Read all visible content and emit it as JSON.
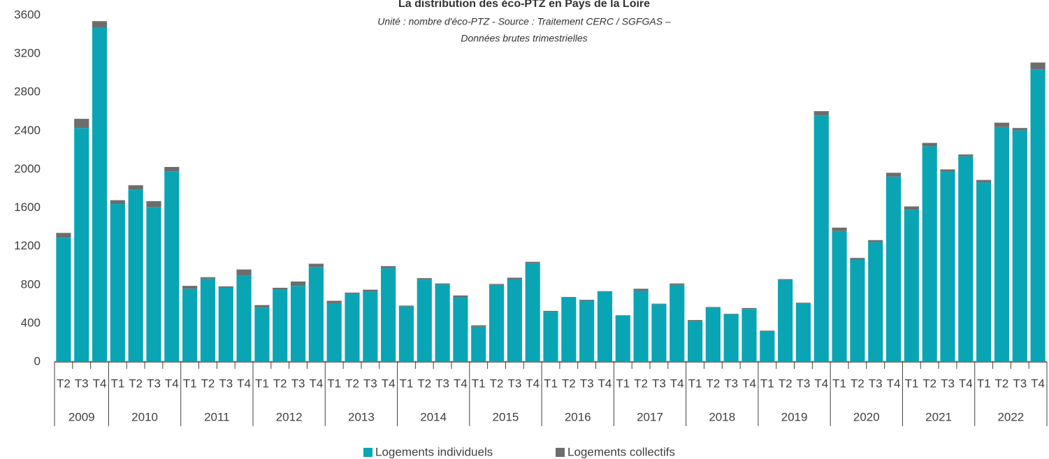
{
  "chart_data": {
    "type": "stacked_bar",
    "title": "La distribution des éco-PTZ en Pays de la Loire",
    "subtitle": [
      "Unité : nombre d'éco-PTZ - Source : Traitement CERC / SGFGAS –",
      "Données brutes trimestrielles"
    ],
    "category_groups": [
      {
        "name": "2009",
        "categories": [
          "T2",
          "T3",
          "T4"
        ]
      },
      {
        "name": "2010",
        "categories": [
          "T1",
          "T2",
          "T3",
          "T4"
        ]
      },
      {
        "name": "2011",
        "categories": [
          "T1",
          "T2",
          "T3",
          "T4"
        ]
      },
      {
        "name": "2012",
        "categories": [
          "T1",
          "T2",
          "T3",
          "T4"
        ]
      },
      {
        "name": "2013",
        "categories": [
          "T1",
          "T2",
          "T3",
          "T4"
        ]
      },
      {
        "name": "2014",
        "categories": [
          "T1",
          "T2",
          "T3",
          "T4"
        ]
      },
      {
        "name": "2015",
        "categories": [
          "T1",
          "T2",
          "T3",
          "T4"
        ]
      },
      {
        "name": "2016",
        "categories": [
          "T1",
          "T2",
          "T3",
          "T4"
        ]
      },
      {
        "name": "2017",
        "categories": [
          "T1",
          "T2",
          "T3",
          "T4"
        ]
      },
      {
        "name": "2018",
        "categories": [
          "T1",
          "T2",
          "T3",
          "T4"
        ]
      },
      {
        "name": "2019",
        "categories": [
          "T1",
          "T2",
          "T3",
          "T4"
        ]
      },
      {
        "name": "2020",
        "categories": [
          "T1",
          "T2",
          "T3",
          "T4"
        ]
      },
      {
        "name": "2021",
        "categories": [
          "T1",
          "T2",
          "T3",
          "T4"
        ]
      },
      {
        "name": "2022",
        "categories": [
          "T1",
          "T2",
          "T3",
          "T4"
        ]
      }
    ],
    "series": [
      {
        "name": "Logements individuels",
        "color": "#0aa5b4",
        "values": [
          1290,
          2430,
          3470,
          1640,
          1790,
          1610,
          1980,
          760,
          865,
          770,
          895,
          565,
          755,
          790,
          985,
          610,
          705,
          730,
          975,
          575,
          855,
          805,
          675,
          365,
          800,
          860,
          1025,
          520,
          670,
          635,
          730,
          480,
          740,
          600,
          800,
          425,
          560,
          495,
          550,
          320,
          850,
          610,
          2560,
          1360,
          1060,
          1245,
          1925,
          1580,
          2240,
          1975,
          2135,
          1865,
          2440,
          2405,
          3040
        ]
      },
      {
        "name": "Logements collectifs",
        "color": "#6d6d6d",
        "values": [
          50,
          95,
          70,
          40,
          45,
          60,
          45,
          30,
          15,
          15,
          65,
          25,
          15,
          45,
          35,
          25,
          15,
          20,
          20,
          10,
          15,
          10,
          15,
          15,
          10,
          15,
          15,
          10,
          5,
          10,
          5,
          5,
          20,
          5,
          15,
          10,
          10,
          5,
          10,
          5,
          10,
          5,
          45,
          35,
          20,
          20,
          40,
          35,
          35,
          25,
          20,
          25,
          45,
          25,
          70
        ]
      }
    ],
    "ylim": [
      0,
      3600
    ],
    "yticks": [
      0,
      400,
      800,
      1200,
      1600,
      2000,
      2400,
      2800,
      3200,
      3600
    ],
    "legend": "bottom"
  }
}
